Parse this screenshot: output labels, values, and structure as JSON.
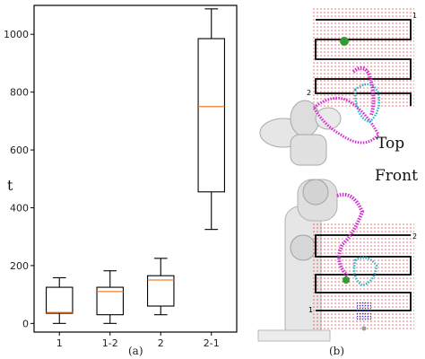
{
  "chart_data": {
    "type": "box",
    "ylabel": "t",
    "ylim": [
      -30,
      1100
    ],
    "yticks": [
      0,
      200,
      400,
      600,
      800,
      1000
    ],
    "categories": [
      "1",
      "1-2",
      "2",
      "2-1"
    ],
    "boxes": [
      {
        "label": "1",
        "min": 0,
        "q1": 35,
        "median": 38,
        "q3": 125,
        "max": 158
      },
      {
        "label": "1-2",
        "min": 0,
        "q1": 30,
        "median": 110,
        "q3": 125,
        "max": 182
      },
      {
        "label": "2",
        "min": 30,
        "q1": 60,
        "median": 150,
        "q3": 165,
        "max": 225
      },
      {
        "label": "2-1",
        "min": 325,
        "q1": 455,
        "median": 750,
        "q3": 985,
        "max": 1088
      }
    ],
    "colors": {
      "box": "#000000",
      "median": "#f07f2a"
    }
  },
  "captions": {
    "a": "(a)",
    "b": "(b)"
  },
  "views": {
    "top": "Top",
    "front": "Front"
  },
  "markers": {
    "top_1": "1",
    "top_2": "2",
    "front_1": "1",
    "front_2": "2"
  },
  "colors": {
    "grid_dots": "#e5484d",
    "path": "#000000",
    "arm_magenta": "#d42bd4",
    "arm_cyan": "#27b3c9",
    "goal": "#2f9d2f",
    "blue_points": "#2b35c7"
  }
}
